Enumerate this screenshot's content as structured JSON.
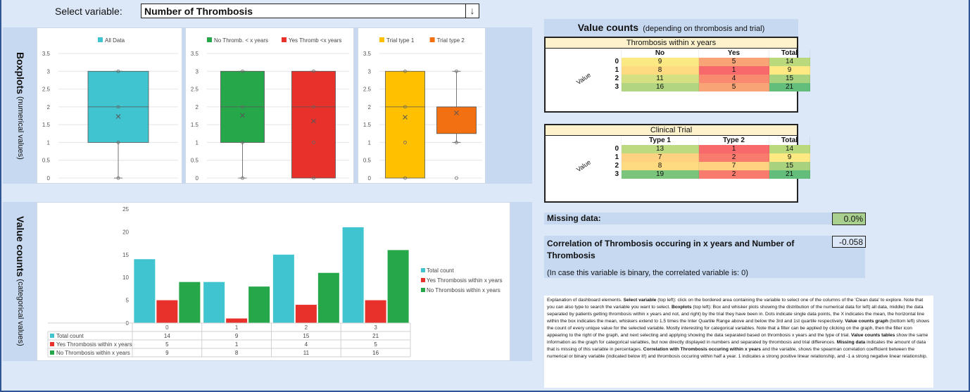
{
  "selector": {
    "label": "Select variable:",
    "value": "Number of Thrombosis",
    "arrow_icon": "down-arrow"
  },
  "side_labels": {
    "boxplots_bold": "Boxplots",
    "boxplots_sub": "(numerical values)",
    "valuecounts_bold": "Value counts",
    "valuecounts_sub": "(categorical values)"
  },
  "boxplots": [
    {
      "legend": [
        "All Data"
      ],
      "colors": [
        "#40c4cf"
      ],
      "ylim": [
        0,
        3.5
      ],
      "ticks": [
        "0",
        "0.5",
        "1",
        "1.5",
        "2",
        "2.5",
        "3",
        "3.5"
      ],
      "boxes": [
        {
          "name": "All Data",
          "min": 0,
          "q1": 1,
          "median": 2,
          "q3": 3,
          "max": 3,
          "mean": 1.73,
          "points": [
            0,
            1,
            2,
            3
          ]
        }
      ]
    },
    {
      "legend": [
        "No Thromb. < x years",
        "Yes Thromb <x years"
      ],
      "colors": [
        "#26a84a",
        "#e8312a"
      ],
      "ylim": [
        0,
        3.5
      ],
      "ticks": [
        "0",
        "0.5",
        "1",
        "1.5",
        "2",
        "2.5",
        "3",
        "3.5"
      ],
      "boxes": [
        {
          "name": "No",
          "min": 0,
          "q1": 1,
          "median": 2,
          "q3": 3,
          "max": 3,
          "mean": 1.76,
          "points": [
            0,
            1,
            2,
            3
          ]
        },
        {
          "name": "Yes",
          "min": 0,
          "q1": 0,
          "median": 2,
          "q3": 3,
          "max": 3,
          "mean": 1.6,
          "points": [
            0,
            1,
            2,
            3
          ]
        }
      ]
    },
    {
      "legend": [
        "Trial type 1",
        "Trial type 2"
      ],
      "colors": [
        "#ffc000",
        "#f26f12"
      ],
      "ylim": [
        0,
        3.5
      ],
      "ticks": [
        "0",
        "0.5",
        "1",
        "1.5",
        "2",
        "2.5",
        "3",
        "3.5"
      ],
      "boxes": [
        {
          "name": "Type 1",
          "min": 0,
          "q1": 0,
          "median": 2,
          "q3": 3,
          "max": 3,
          "mean": 1.71,
          "points": [
            0,
            1,
            2,
            3
          ]
        },
        {
          "name": "Type 2",
          "min": 1,
          "q1": 1.25,
          "median": 2,
          "q3": 2,
          "max": 3,
          "mean": 1.83,
          "points": [
            0,
            1,
            3
          ]
        }
      ]
    }
  ],
  "chart_data": {
    "type": "bar",
    "categories": [
      "0",
      "1",
      "2",
      "3"
    ],
    "series": [
      {
        "name": "Total count",
        "color": "#40c4cf",
        "values": [
          14,
          9,
          15,
          21
        ]
      },
      {
        "name": "Yes Thrombosis within x years",
        "color": "#e8312a",
        "values": [
          5,
          1,
          4,
          5
        ]
      },
      {
        "name": "No Thrombosis within x years",
        "color": "#26a84a",
        "values": [
          9,
          8,
          11,
          16
        ]
      }
    ],
    "ylim": [
      0,
      25
    ],
    "yticks": [
      "0",
      "5",
      "10",
      "15",
      "20",
      "25"
    ],
    "legend_position": "right",
    "data_table": true
  },
  "value_counts": {
    "title_bold": "Value counts",
    "title_sub": "(depending on thrombosis and trial)",
    "thrombosis": {
      "title": "Thrombosis within x years",
      "row_label": "Value",
      "headers": [
        "No",
        "Yes",
        "Total"
      ],
      "rows": [
        {
          "idx": "0",
          "cells": [
            "9",
            "5",
            "14"
          ],
          "colors": [
            "#fbe983",
            "#f8a477",
            "#b9d97c"
          ]
        },
        {
          "idx": "1",
          "cells": [
            "8",
            "1",
            "9"
          ],
          "colors": [
            "#fedb81",
            "#f8696b",
            "#fee982"
          ]
        },
        {
          "idx": "2",
          "cells": [
            "11",
            "4",
            "15"
          ],
          "colors": [
            "#d4e081",
            "#f9896f",
            "#a9d27f"
          ]
        },
        {
          "idx": "3",
          "cells": [
            "16",
            "5",
            "21"
          ],
          "colors": [
            "#b1d580",
            "#f8a477",
            "#63be7b"
          ]
        }
      ]
    },
    "trial": {
      "title": "Clinical Trial",
      "row_label": "Value",
      "headers": [
        "Type 1",
        "Type 2",
        "Total"
      ],
      "rows": [
        {
          "idx": "0",
          "cells": [
            "13",
            "1",
            "14"
          ],
          "colors": [
            "#bdda80",
            "#f8696b",
            "#b9d97c"
          ]
        },
        {
          "idx": "1",
          "cells": [
            "7",
            "2",
            "9"
          ],
          "colors": [
            "#fed280",
            "#f87b6e",
            "#fee982"
          ]
        },
        {
          "idx": "2",
          "cells": [
            "8",
            "7",
            "15"
          ],
          "colors": [
            "#fedb81",
            "#fed280",
            "#a9d27f"
          ]
        },
        {
          "idx": "3",
          "cells": [
            "19",
            "2",
            "21"
          ],
          "colors": [
            "#7ac47c",
            "#f87b6e",
            "#63be7b"
          ]
        }
      ]
    }
  },
  "missing": {
    "label": "Missing data:",
    "value": "0.0%",
    "color": "#a9d08e"
  },
  "correlation": {
    "title": "Correlation of Thrombosis occuring in x years and  Number of Thrombosis",
    "value": "-0.058",
    "note": "(In case this variable is binary, the correlated variable is: 0)"
  },
  "explanation": {
    "p1": "Explanation of dashboard elements. ",
    "b1": "Select variable",
    "p2": " (top left): click on the bordered area containing the variable to select one of the columns of the 'Clean data' to explore. Note that you can also type to search the variable you want to select. ",
    "b2": "Boxplots",
    "p3": " (top left): Box and whisker plots showing the distribution of the numerical data for left) all data, middle) the data separated by patients getting thrombosis within x years and not, and right) by the trial they have been in. Dots indicate single data points, the X indicates the mean, the horizontal line within the box indicates the mean, whiskers extend to 1.5 times the Inter Quartile Range above and below the 3rd and 1st quartile respectively. ",
    "b3": "Value counts graph",
    "p4": " (bottom left) shows the count of every unique value for the selected variable. Mostly interesting for categorical variables. Note that a filter can be applied by clicking on the graph, then the filter icon appearing to the right of the graph, and next selecting and applying showing the data separated based on thrombosis x years and the type of trial. ",
    "b4": "Value counts tables",
    "p5": " show the same information as the graph for categorical variables, but now directly displayed in numbers and separated by thrombosis and trial differences. ",
    "b5": "Missing data",
    "p6": " indicates the amount of data that is missing of this variable in percentages. ",
    "b6": "Correlation with Thrombosis occuring within x years",
    "p7": " and the variable, shows the spearman correlation coefficient between the numerical or binary variable (indicated below it!) and thrombosis occuring within half a year. 1 indicates a strong positive linear relationship, and -1 a strong negative linear relationship."
  }
}
